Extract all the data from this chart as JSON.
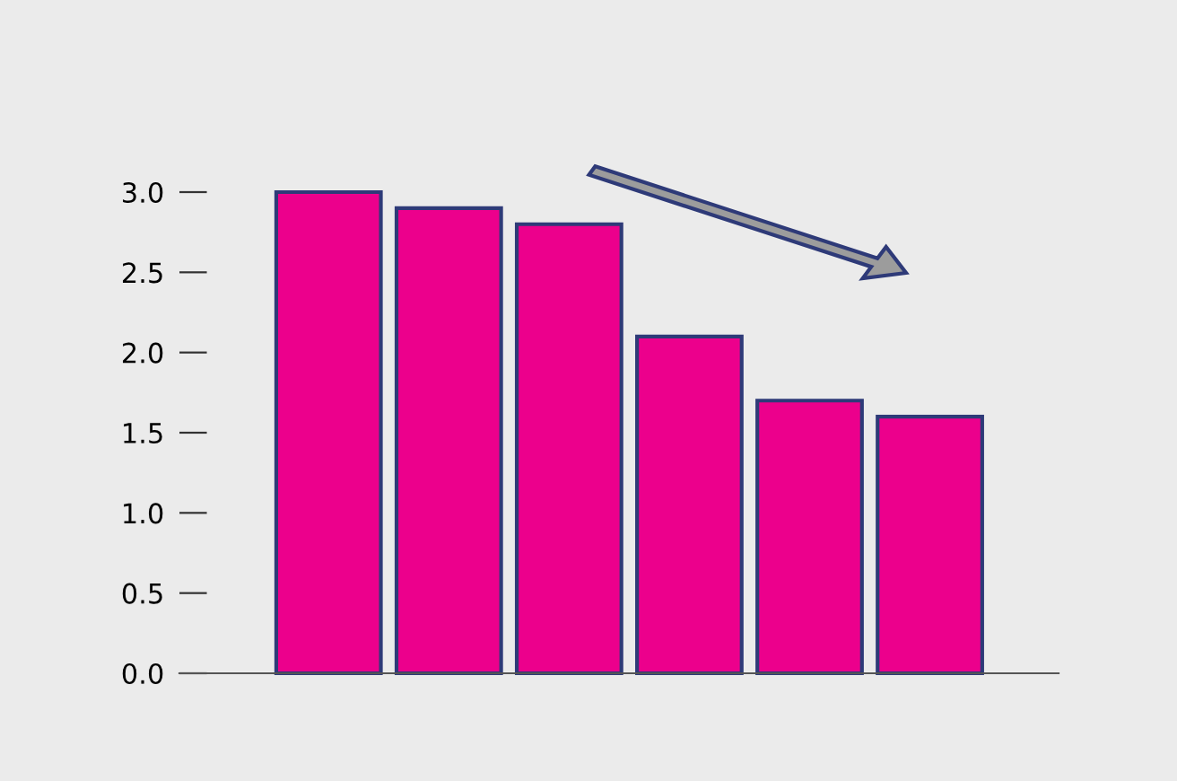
{
  "chart_data": {
    "type": "bar",
    "categories": [
      null,
      null,
      null,
      null,
      null,
      null
    ],
    "values": [
      3.0,
      2.9,
      2.8,
      2.1,
      1.7,
      1.6
    ],
    "color": "#ec008c",
    "ylim": [
      0,
      3.0
    ],
    "yticks": [
      {
        "value": 0,
        "label": "0.0"
      },
      {
        "value": 0.5,
        "label": "0.5"
      },
      {
        "value": 1.0,
        "label": "1.0"
      },
      {
        "value": 1.5,
        "label": "1.5"
      },
      {
        "value": 2.0,
        "label": "2.0"
      },
      {
        "value": 2.5,
        "label": "2.5"
      },
      {
        "value": 3.0,
        "label": "3.0"
      }
    ],
    "grid": false
  }
}
